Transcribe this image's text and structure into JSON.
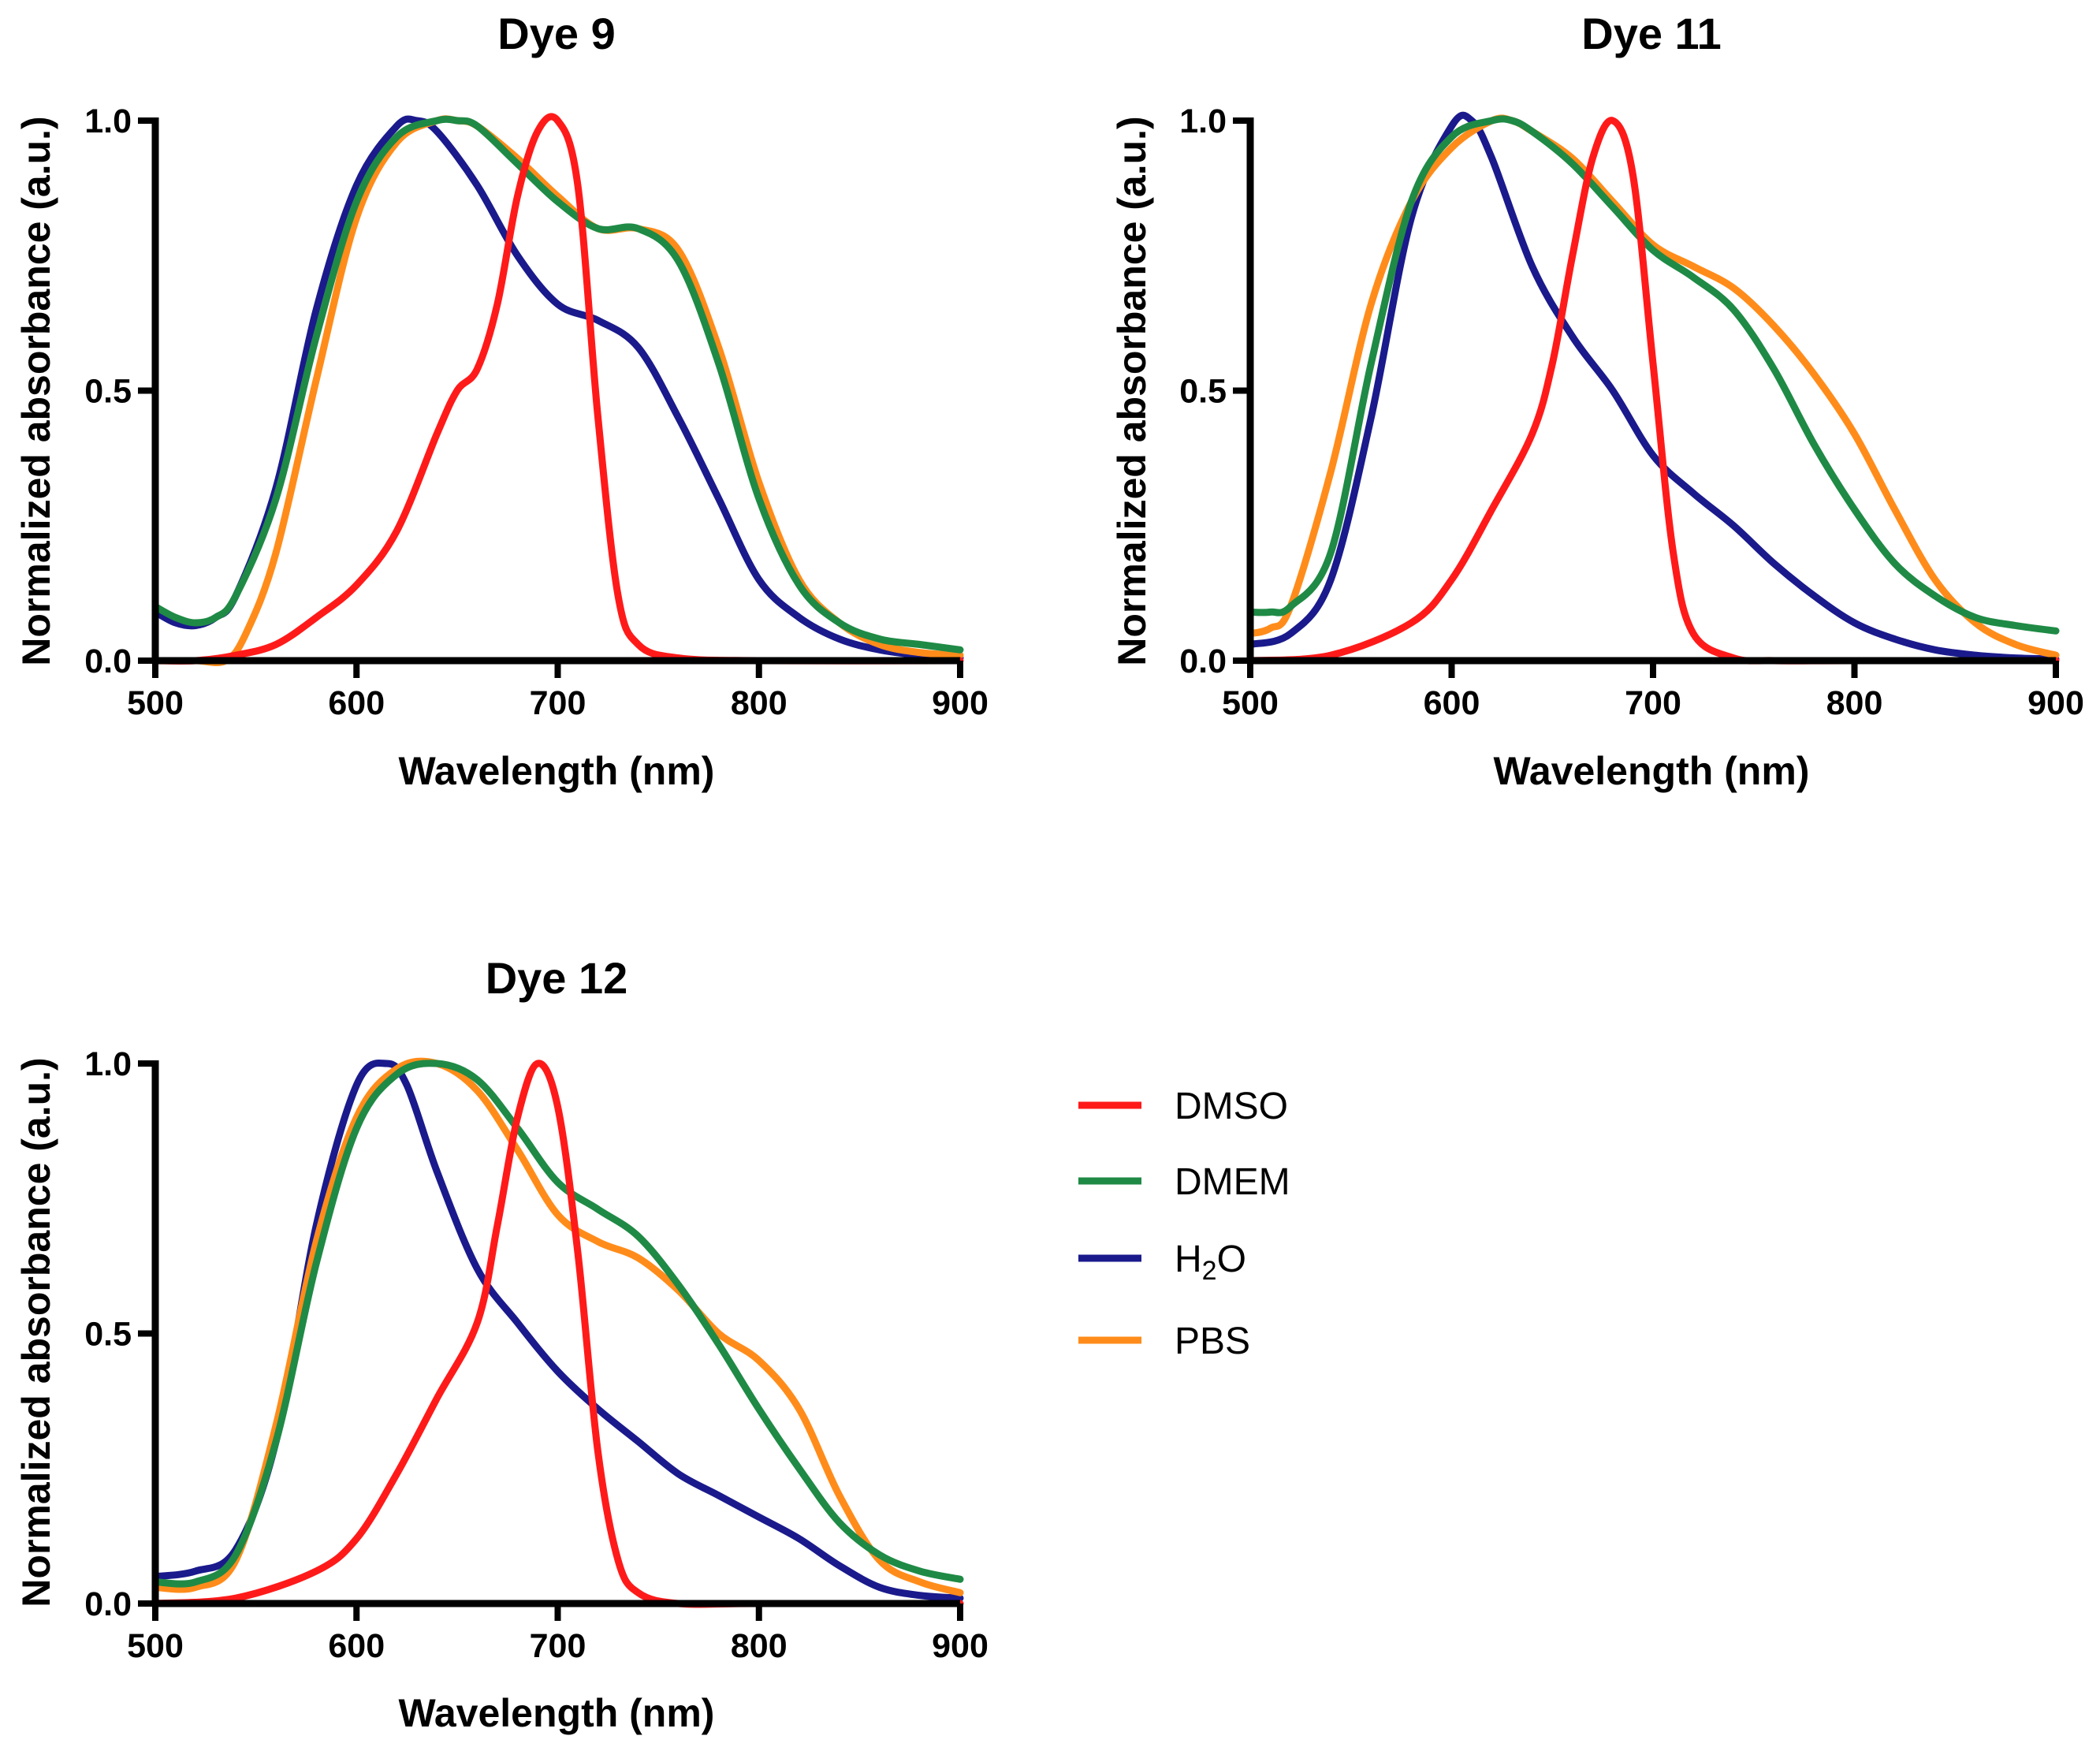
{
  "legend": [
    {
      "key": "DMSO",
      "label": "DMSO",
      "sub": "",
      "label_after": "",
      "color": "#ff1a1a"
    },
    {
      "key": "DMEM",
      "label": "DMEM",
      "sub": "",
      "label_after": "",
      "color": "#1f8a45"
    },
    {
      "key": "H2O",
      "label": "H",
      "sub": "2",
      "label_after": "O",
      "color": "#1a1a8c"
    },
    {
      "key": "PBS",
      "label": "PBS",
      "sub": "",
      "label_after": "",
      "color": "#ff8c1a"
    }
  ],
  "chart_data": [
    {
      "type": "line",
      "title": "Dye 9",
      "xlabel": "Wavelength (nm)",
      "ylabel": "Normalized absorbance (a.u.)",
      "xlim": [
        500,
        900
      ],
      "ylim": [
        0,
        1
      ],
      "xticks": [
        "500",
        "600",
        "700",
        "800",
        "900"
      ],
      "yticks": [
        "0.0",
        "0.5",
        "1.0"
      ],
      "series": [
        {
          "name": "DMSO",
          "x": [
            500,
            520,
            540,
            560,
            580,
            600,
            620,
            640,
            650,
            660,
            670,
            680,
            690,
            700,
            710,
            720,
            730,
            740,
            760,
            800,
            900
          ],
          "y": [
            0,
            0,
            0.01,
            0.03,
            0.08,
            0.14,
            0.24,
            0.42,
            0.5,
            0.54,
            0.66,
            0.86,
            0.98,
            1.0,
            0.88,
            0.45,
            0.12,
            0.03,
            0.005,
            0,
            0
          ]
        },
        {
          "name": "DMEM",
          "x": [
            500,
            510,
            520,
            530,
            540,
            560,
            580,
            600,
            620,
            640,
            650,
            660,
            680,
            700,
            720,
            740,
            760,
            780,
            800,
            820,
            840,
            860,
            880,
            900
          ],
          "y": [
            0.1,
            0.08,
            0.07,
            0.08,
            0.12,
            0.3,
            0.6,
            0.85,
            0.97,
            1.0,
            1.0,
            0.99,
            0.92,
            0.85,
            0.8,
            0.8,
            0.74,
            0.55,
            0.3,
            0.14,
            0.07,
            0.04,
            0.03,
            0.02
          ]
        },
        {
          "name": "H2O",
          "x": [
            500,
            510,
            520,
            530,
            540,
            560,
            580,
            600,
            620,
            630,
            640,
            660,
            680,
            700,
            720,
            740,
            760,
            780,
            800,
            820,
            840,
            860,
            880,
            900
          ],
          "y": [
            0.09,
            0.07,
            0.065,
            0.08,
            0.12,
            0.32,
            0.65,
            0.88,
            0.99,
            1.0,
            0.98,
            0.88,
            0.75,
            0.66,
            0.63,
            0.58,
            0.45,
            0.3,
            0.15,
            0.08,
            0.04,
            0.02,
            0.01,
            0.005
          ]
        },
        {
          "name": "PBS",
          "x": [
            500,
            520,
            535,
            545,
            560,
            580,
            600,
            620,
            640,
            650,
            660,
            680,
            700,
            720,
            740,
            760,
            780,
            800,
            820,
            840,
            860,
            880,
            900
          ],
          "y": [
            0,
            0,
            0,
            0.05,
            0.2,
            0.52,
            0.82,
            0.96,
            1.0,
            1.0,
            0.99,
            0.93,
            0.86,
            0.8,
            0.8,
            0.76,
            0.58,
            0.33,
            0.15,
            0.07,
            0.03,
            0.015,
            0.01
          ]
        }
      ]
    },
    {
      "type": "line",
      "title": "Dye 11",
      "xlabel": "Wavelength (nm)",
      "ylabel": "Normalized absorbance (a.u.)",
      "xlim": [
        500,
        900
      ],
      "ylim": [
        0,
        1
      ],
      "xticks": [
        "500",
        "600",
        "700",
        "800",
        "900"
      ],
      "yticks": [
        "0.0",
        "0.5",
        "1.0"
      ],
      "series": [
        {
          "name": "DMSO",
          "x": [
            500,
            540,
            580,
            600,
            620,
            640,
            650,
            660,
            670,
            680,
            690,
            700,
            710,
            720,
            740,
            760,
            800,
            900
          ],
          "y": [
            0,
            0.01,
            0.07,
            0.15,
            0.28,
            0.42,
            0.55,
            0.75,
            0.93,
            1.0,
            0.9,
            0.55,
            0.2,
            0.05,
            0.005,
            0,
            0,
            0
          ]
        },
        {
          "name": "DMEM",
          "x": [
            500,
            510,
            520,
            540,
            560,
            580,
            600,
            620,
            630,
            640,
            660,
            680,
            700,
            720,
            740,
            760,
            780,
            800,
            820,
            840,
            860,
            880,
            900
          ],
          "y": [
            0.09,
            0.09,
            0.1,
            0.2,
            0.55,
            0.85,
            0.97,
            1.0,
            1.0,
            0.98,
            0.92,
            0.84,
            0.76,
            0.71,
            0.65,
            0.54,
            0.4,
            0.28,
            0.18,
            0.12,
            0.08,
            0.065,
            0.055
          ]
        },
        {
          "name": "H2O",
          "x": [
            500,
            520,
            540,
            560,
            580,
            600,
            610,
            620,
            640,
            660,
            680,
            700,
            720,
            740,
            760,
            780,
            800,
            820,
            840,
            860,
            880,
            900
          ],
          "y": [
            0.03,
            0.05,
            0.15,
            0.45,
            0.82,
            0.99,
            1.0,
            0.93,
            0.73,
            0.6,
            0.5,
            0.38,
            0.31,
            0.25,
            0.18,
            0.12,
            0.07,
            0.04,
            0.02,
            0.01,
            0.005,
            0.003
          ]
        },
        {
          "name": "PBS",
          "x": [
            500,
            510,
            520,
            540,
            560,
            580,
            600,
            620,
            630,
            640,
            660,
            680,
            700,
            720,
            740,
            760,
            780,
            800,
            820,
            840,
            860,
            880,
            900
          ],
          "y": [
            0.05,
            0.06,
            0.1,
            0.35,
            0.66,
            0.85,
            0.95,
            1.0,
            1.0,
            0.98,
            0.93,
            0.85,
            0.77,
            0.73,
            0.69,
            0.62,
            0.53,
            0.42,
            0.28,
            0.15,
            0.07,
            0.03,
            0.01
          ]
        }
      ]
    },
    {
      "type": "line",
      "title": "Dye 12",
      "xlabel": "Wavelength (nm)",
      "ylabel": "Normalized absorbance (a.u.)",
      "xlim": [
        500,
        900
      ],
      "ylim": [
        0,
        1
      ],
      "xticks": [
        "500",
        "600",
        "700",
        "800",
        "900"
      ],
      "yticks": [
        "0.0",
        "0.5",
        "1.0"
      ],
      "series": [
        {
          "name": "DMSO",
          "x": [
            500,
            540,
            580,
            600,
            620,
            640,
            660,
            670,
            680,
            690,
            700,
            710,
            720,
            730,
            740,
            760,
            800,
            900
          ],
          "y": [
            0,
            0.01,
            0.06,
            0.12,
            0.24,
            0.38,
            0.52,
            0.7,
            0.9,
            1.0,
            0.92,
            0.65,
            0.28,
            0.08,
            0.02,
            0,
            0,
            0
          ]
        },
        {
          "name": "DMEM",
          "x": [
            500,
            520,
            540,
            560,
            580,
            600,
            620,
            640,
            660,
            680,
            700,
            720,
            740,
            760,
            780,
            800,
            820,
            840,
            860,
            880,
            900
          ],
          "y": [
            0.04,
            0.04,
            0.09,
            0.3,
            0.63,
            0.88,
            0.98,
            1.0,
            0.97,
            0.88,
            0.78,
            0.73,
            0.68,
            0.59,
            0.48,
            0.36,
            0.25,
            0.15,
            0.09,
            0.06,
            0.045
          ]
        },
        {
          "name": "H2O",
          "x": [
            500,
            520,
            540,
            560,
            580,
            600,
            615,
            625,
            640,
            660,
            680,
            700,
            720,
            740,
            760,
            780,
            800,
            820,
            840,
            860,
            880,
            900
          ],
          "y": [
            0.05,
            0.06,
            0.1,
            0.3,
            0.7,
            0.96,
            1.0,
            0.96,
            0.8,
            0.62,
            0.52,
            0.43,
            0.36,
            0.3,
            0.24,
            0.2,
            0.16,
            0.12,
            0.07,
            0.03,
            0.015,
            0.01
          ]
        },
        {
          "name": "PBS",
          "x": [
            500,
            520,
            540,
            560,
            580,
            600,
            620,
            640,
            660,
            680,
            700,
            720,
            740,
            760,
            780,
            800,
            820,
            840,
            860,
            880,
            900
          ],
          "y": [
            0.03,
            0.03,
            0.08,
            0.33,
            0.67,
            0.9,
            0.99,
            1.0,
            0.95,
            0.84,
            0.72,
            0.67,
            0.64,
            0.58,
            0.5,
            0.45,
            0.36,
            0.2,
            0.08,
            0.04,
            0.02
          ]
        }
      ]
    }
  ]
}
